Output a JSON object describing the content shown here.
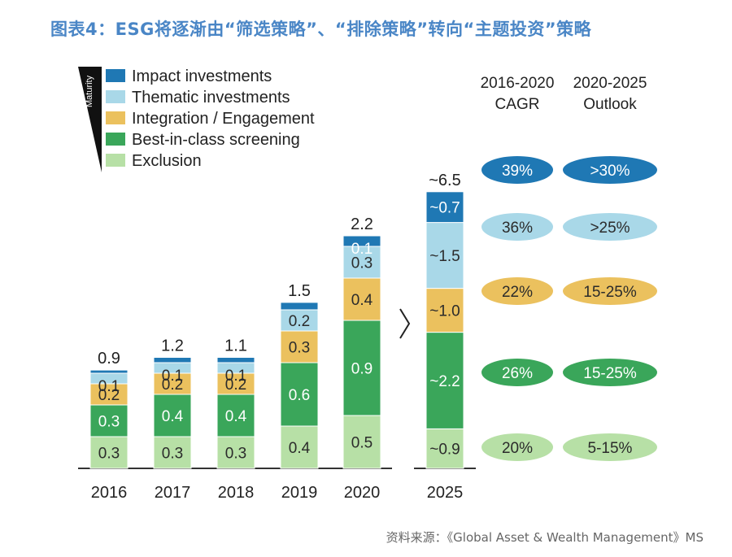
{
  "title": "图表4：ESG将逐渐由“筛选策略”、“排除策略”转向“主题投资”策略",
  "source": "资料来源：《Global Asset & Wealth Management》MS",
  "chart_data": {
    "type": "bar",
    "stacked": true,
    "categories": [
      "2016",
      "2017",
      "2018",
      "2019",
      "2020",
      "2025"
    ],
    "totals": [
      "0.9",
      "1.2",
      "1.1",
      "1.5",
      "2.2",
      "~6.5"
    ],
    "maturity_label": "Maturity",
    "series": [
      {
        "name": "Exclusion",
        "color": "#b7e0a6",
        "text_color": "#2b2b2b",
        "values": [
          0.3,
          0.3,
          0.3,
          0.4,
          0.5,
          0.9
        ],
        "labels": [
          "0.3",
          "0.3",
          "0.3",
          "0.4",
          "0.5",
          "~0.9"
        ]
      },
      {
        "name": "Best-in-class screening",
        "color": "#3aa65a",
        "text_color": "#ffffff",
        "values": [
          0.3,
          0.4,
          0.4,
          0.6,
          0.9,
          2.2
        ],
        "labels": [
          "0.3",
          "0.4",
          "0.4",
          "0.6",
          "0.9",
          "~2.2"
        ]
      },
      {
        "name": "Integration / Engagement",
        "color": "#ebc15e",
        "text_color": "#2b2b2b",
        "values": [
          0.2,
          0.2,
          0.2,
          0.3,
          0.4,
          1.0
        ],
        "labels": [
          "0.2",
          "0.2",
          "0.2",
          "0.3",
          "0.4",
          "~1.0"
        ]
      },
      {
        "name": "Thematic investments",
        "color": "#a9d8e8",
        "text_color": "#2b2b2b",
        "values": [
          0.1,
          0.1,
          0.1,
          0.2,
          0.3,
          1.5
        ],
        "labels": [
          "0.1",
          "0.1",
          "0.1",
          "0.2",
          "0.3",
          "~1.5"
        ]
      },
      {
        "name": "Impact investments",
        "color": "#1f78b4",
        "text_color": "#ffffff",
        "values": [
          0.03,
          0.05,
          0.05,
          0.07,
          0.1,
          0.7
        ],
        "labels": [
          "",
          "",
          "",
          "",
          "0.1",
          "~0.7"
        ]
      }
    ],
    "table": {
      "col1_header": [
        "2016-2020",
        "CAGR"
      ],
      "col2_header": [
        "2020-2025",
        "Outlook"
      ],
      "rows": [
        {
          "series": "Impact investments",
          "cagr": "39%",
          "outlook": ">30%",
          "color": "#1f78b4",
          "text_color": "#ffffff"
        },
        {
          "series": "Thematic investments",
          "cagr": "36%",
          "outlook": ">25%",
          "color": "#a9d8e8",
          "text_color": "#2b2b2b"
        },
        {
          "series": "Integration / Engagement",
          "cagr": "22%",
          "outlook": "15-25%",
          "color": "#ebc15e",
          "text_color": "#2b2b2b"
        },
        {
          "series": "Best-in-class screening",
          "cagr": "26%",
          "outlook": "15-25%",
          "color": "#3aa65a",
          "text_color": "#ffffff"
        },
        {
          "series": "Exclusion",
          "cagr": "20%",
          "outlook": "5-15%",
          "color": "#b7e0a6",
          "text_color": "#2b2b2b"
        }
      ]
    },
    "unit": ""
  }
}
